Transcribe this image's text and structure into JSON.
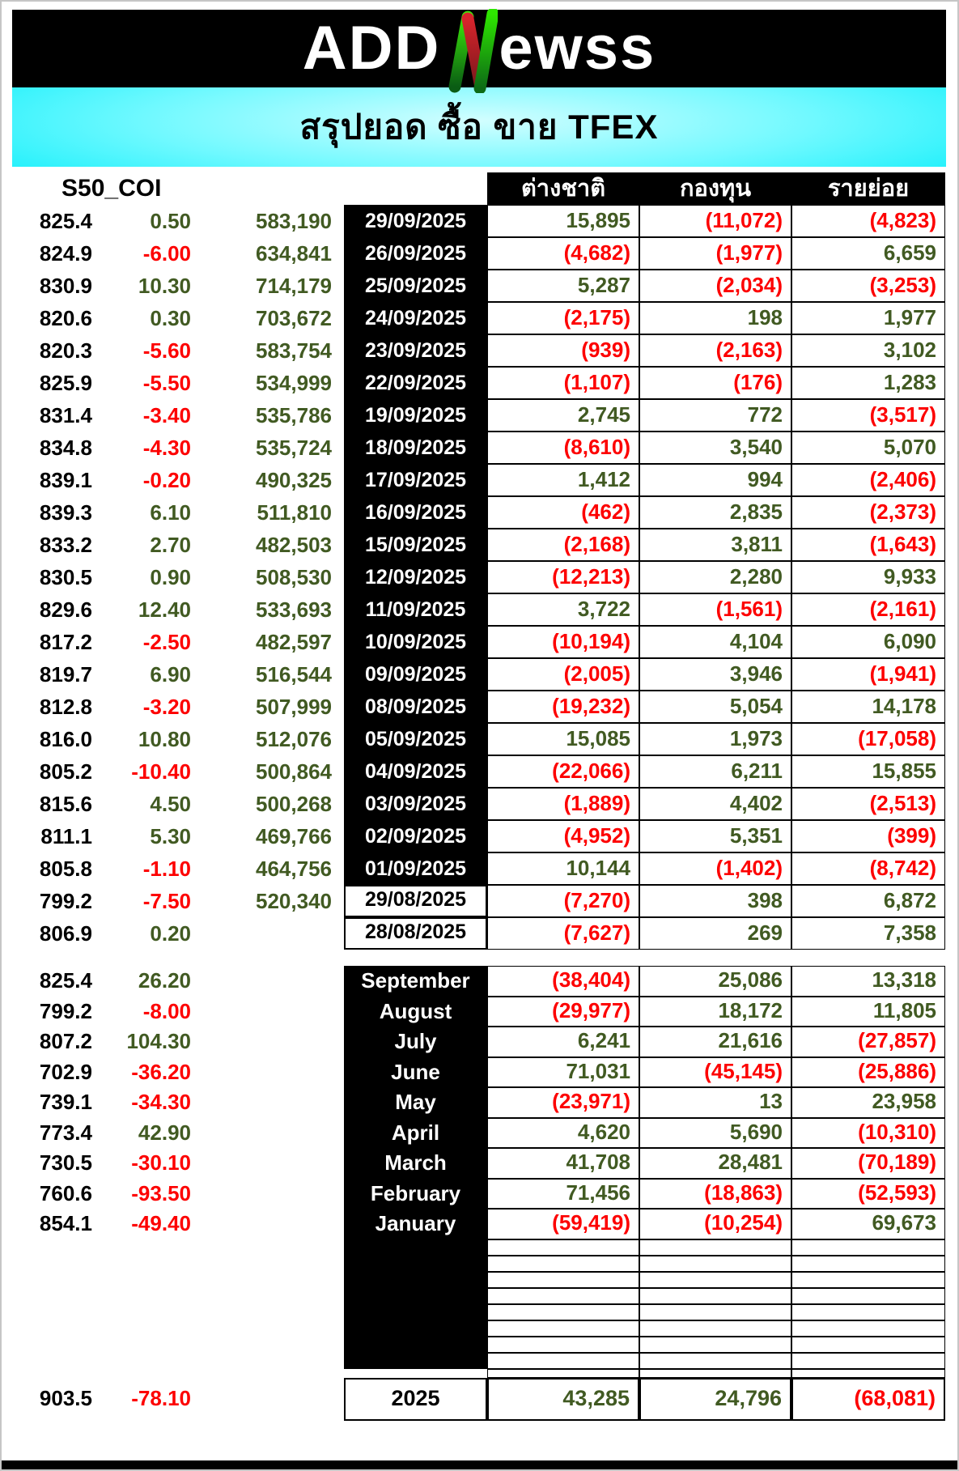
{
  "header": {
    "logo_prefix": "ADD",
    "logo_n": "N",
    "logo_suffix": "ewss",
    "title": "สรุปยอด ซื้อ ขาย TFEX"
  },
  "table": {
    "symbol": "S50_COI",
    "column_headers": {
      "foreign": "ต่างชาติ",
      "fund": "กองทุน",
      "retail": "รายย่อย"
    },
    "daily_rows": [
      {
        "date": "29/09/2025",
        "date_bg": "dark",
        "price": "825.4",
        "change": "0.50",
        "volume": "583,190",
        "foreign": "15,895",
        "fund": "(11,072)",
        "retail": "(4,823)"
      },
      {
        "date": "26/09/2025",
        "date_bg": "dark",
        "price": "824.9",
        "change": "-6.00",
        "volume": "634,841",
        "foreign": "(4,682)",
        "fund": "(1,977)",
        "retail": "6,659"
      },
      {
        "date": "25/09/2025",
        "date_bg": "dark",
        "price": "830.9",
        "change": "10.30",
        "volume": "714,179",
        "foreign": "5,287",
        "fund": "(2,034)",
        "retail": "(3,253)"
      },
      {
        "date": "24/09/2025",
        "date_bg": "dark",
        "price": "820.6",
        "change": "0.30",
        "volume": "703,672",
        "foreign": "(2,175)",
        "fund": "198",
        "retail": "1,977"
      },
      {
        "date": "23/09/2025",
        "date_bg": "dark",
        "price": "820.3",
        "change": "-5.60",
        "volume": "583,754",
        "foreign": "(939)",
        "fund": "(2,163)",
        "retail": "3,102"
      },
      {
        "date": "22/09/2025",
        "date_bg": "dark",
        "price": "825.9",
        "change": "-5.50",
        "volume": "534,999",
        "foreign": "(1,107)",
        "fund": "(176)",
        "retail": "1,283"
      },
      {
        "date": "19/09/2025",
        "date_bg": "dark",
        "price": "831.4",
        "change": "-3.40",
        "volume": "535,786",
        "foreign": "2,745",
        "fund": "772",
        "retail": "(3,517)"
      },
      {
        "date": "18/09/2025",
        "date_bg": "dark",
        "price": "834.8",
        "change": "-4.30",
        "volume": "535,724",
        "foreign": "(8,610)",
        "fund": "3,540",
        "retail": "5,070"
      },
      {
        "date": "17/09/2025",
        "date_bg": "dark",
        "price": "839.1",
        "change": "-0.20",
        "volume": "490,325",
        "foreign": "1,412",
        "fund": "994",
        "retail": "(2,406)"
      },
      {
        "date": "16/09/2025",
        "date_bg": "dark",
        "price": "839.3",
        "change": "6.10",
        "volume": "511,810",
        "foreign": "(462)",
        "fund": "2,835",
        "retail": "(2,373)"
      },
      {
        "date": "15/09/2025",
        "date_bg": "dark",
        "price": "833.2",
        "change": "2.70",
        "volume": "482,503",
        "foreign": "(2,168)",
        "fund": "3,811",
        "retail": "(1,643)"
      },
      {
        "date": "12/09/2025",
        "date_bg": "dark",
        "price": "830.5",
        "change": "0.90",
        "volume": "508,530",
        "foreign": "(12,213)",
        "fund": "2,280",
        "retail": "9,933"
      },
      {
        "date": "11/09/2025",
        "date_bg": "dark",
        "price": "829.6",
        "change": "12.40",
        "volume": "533,693",
        "foreign": "3,722",
        "fund": "(1,561)",
        "retail": "(2,161)"
      },
      {
        "date": "10/09/2025",
        "date_bg": "dark",
        "price": "817.2",
        "change": "-2.50",
        "volume": "482,597",
        "foreign": "(10,194)",
        "fund": "4,104",
        "retail": "6,090"
      },
      {
        "date": "09/09/2025",
        "date_bg": "dark",
        "price": "819.7",
        "change": "6.90",
        "volume": "516,544",
        "foreign": "(2,005)",
        "fund": "3,946",
        "retail": "(1,941)"
      },
      {
        "date": "08/09/2025",
        "date_bg": "dark",
        "price": "812.8",
        "change": "-3.20",
        "volume": "507,999",
        "foreign": "(19,232)",
        "fund": "5,054",
        "retail": "14,178"
      },
      {
        "date": "05/09/2025",
        "date_bg": "dark",
        "price": "816.0",
        "change": "10.80",
        "volume": "512,076",
        "foreign": "15,085",
        "fund": "1,973",
        "retail": "(17,058)"
      },
      {
        "date": "04/09/2025",
        "date_bg": "dark",
        "price": "805.2",
        "change": "-10.40",
        "volume": "500,864",
        "foreign": "(22,066)",
        "fund": "6,211",
        "retail": "15,855"
      },
      {
        "date": "03/09/2025",
        "date_bg": "dark",
        "price": "815.6",
        "change": "4.50",
        "volume": "500,268",
        "foreign": "(1,889)",
        "fund": "4,402",
        "retail": "(2,513)"
      },
      {
        "date": "02/09/2025",
        "date_bg": "dark",
        "price": "811.1",
        "change": "5.30",
        "volume": "469,766",
        "foreign": "(4,952)",
        "fund": "5,351",
        "retail": "(399)"
      },
      {
        "date": "01/09/2025",
        "date_bg": "dark",
        "price": "805.8",
        "change": "-1.10",
        "volume": "464,756",
        "foreign": "10,144",
        "fund": "(1,402)",
        "retail": "(8,742)"
      },
      {
        "date": "29/08/2025",
        "date_bg": "light",
        "price": "799.2",
        "change": "-7.50",
        "volume": "520,340",
        "foreign": "(7,270)",
        "fund": "398",
        "retail": "6,872"
      },
      {
        "date": "28/08/2025",
        "date_bg": "light",
        "price": "806.9",
        "change": "0.20",
        "volume": "",
        "foreign": "(7,627)",
        "fund": "269",
        "retail": "7,358"
      }
    ],
    "monthly_rows": [
      {
        "month": "September",
        "price": "825.4",
        "change": "26.20",
        "foreign": "(38,404)",
        "fund": "25,086",
        "retail": "13,318"
      },
      {
        "month": "August",
        "price": "799.2",
        "change": "-8.00",
        "foreign": "(29,977)",
        "fund": "18,172",
        "retail": "11,805"
      },
      {
        "month": "July",
        "price": "807.2",
        "change": "104.30",
        "foreign": "6,241",
        "fund": "21,616",
        "retail": "(27,857)"
      },
      {
        "month": "June",
        "price": "702.9",
        "change": "-36.20",
        "foreign": "71,031",
        "fund": "(45,145)",
        "retail": "(25,886)"
      },
      {
        "month": "May",
        "price": "739.1",
        "change": "-34.30",
        "foreign": "(23,971)",
        "fund": "13",
        "retail": "23,958"
      },
      {
        "month": "April",
        "price": "773.4",
        "change": "42.90",
        "foreign": "4,620",
        "fund": "5,690",
        "retail": "(10,310)"
      },
      {
        "month": "March",
        "price": "730.5",
        "change": "-30.10",
        "foreign": "41,708",
        "fund": "28,481",
        "retail": "(70,189)"
      },
      {
        "month": "February",
        "price": "760.6",
        "change": "-93.50",
        "foreign": "71,456",
        "fund": "(18,863)",
        "retail": "(52,593)"
      },
      {
        "month": "January",
        "price": "854.1",
        "change": "-49.40",
        "foreign": "(59,419)",
        "fund": "(10,254)",
        "retail": "69,673"
      }
    ],
    "empty_row_count": 8,
    "year_row": {
      "label": "2025",
      "price": "903.5",
      "change": "-78.10",
      "foreign": "43,285",
      "fund": "24,796",
      "retail": "(68,081)"
    }
  },
  "colors": {
    "positive": "#415a22",
    "negative": "#fd0000",
    "header_bg": "#000000",
    "banner_cyan": "#00e8f4",
    "logo_green": "#2ddf00",
    "logo_red": "#c62127"
  }
}
